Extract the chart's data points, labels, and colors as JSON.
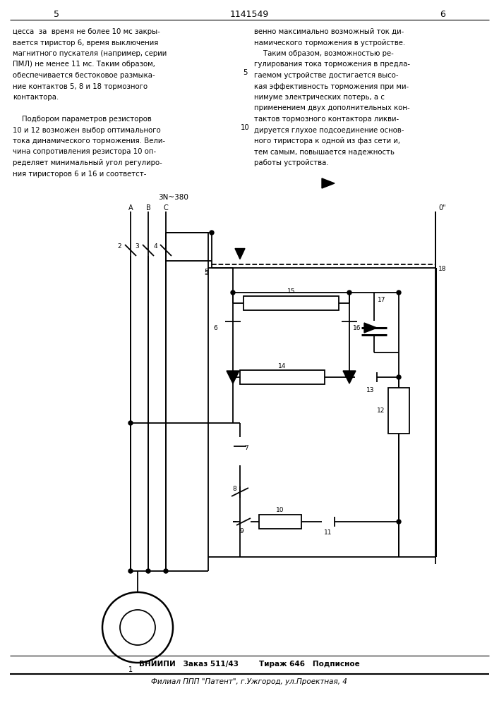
{
  "title_page": "1141549",
  "page_left": "5",
  "page_right": "6",
  "supply_label": "3N~380",
  "phases": [
    "A",
    "B",
    "C"
  ],
  "zero_label": "0\"",
  "text_left_col": [
    "цесса  за  время не более 10 мс закры-",
    "вается тиристор 6, время выключения",
    "магнитного пускателя (например, серии",
    "ПМЛ) не менее 11 мс. Таким образом,",
    "обеспечивается бестоковое размыка-",
    "ние контактов 5, 8 и 18 тормозного",
    "контактора.",
    "",
    "    Подбором параметров резисторов",
    "10 и 12 возможен выбор оптимального",
    "тока динамического торможения. Вели-",
    "чина сопротивления резистора 10 оп-",
    "ределяет минимальный угол регулиро-",
    "ния тиристоров 6 и 16 и соответст-"
  ],
  "text_right_col": [
    "венно максимально возможный ток ди-",
    "намического торможения в устройстве.",
    "    Таким образом, возможностью ре-",
    "гулирования тока торможения в предла-",
    "гаемом устройстве достигается высо-",
    "кая эффективность торможения при ми-",
    "нимуме электрических потерь, а с",
    "применением двух дополнительных кон-",
    "тактов тормозного контактора ликви-",
    "дируется глухое подсоединение основ-",
    "ного тиристора к одной из фаз сети и,",
    "тем самым, повышается надежность",
    "работы устройства."
  ],
  "footer_line1": "ВНИИПИ   Заказ 511/43        Тираж 646   Подписное",
  "footer_line2": "Филиал ППП \"Патент\", г.Ужгород, ул.Проектная, 4",
  "bg_color": "#ffffff"
}
